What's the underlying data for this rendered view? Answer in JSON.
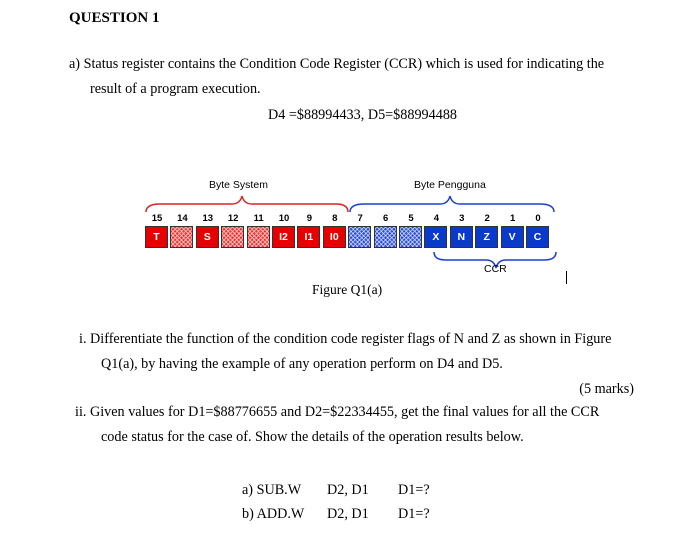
{
  "heading": "QUESTION 1",
  "part_a": {
    "line1": "a)  Status register contains the Condition Code Register (CCR) which is used for indicating the",
    "line2": "result of a program execution.",
    "registers": "D4 =$88994433, D5=$88994488"
  },
  "figure": {
    "byte_system": "Byte System",
    "byte_user": "Byte Pengguna",
    "bit_numbers": [
      "15",
      "14",
      "13",
      "12",
      "11",
      "10",
      "9",
      "8",
      "7",
      "6",
      "5",
      "4",
      "3",
      "2",
      "1",
      "0"
    ],
    "cells": [
      {
        "label": "T",
        "style": "red"
      },
      {
        "label": "",
        "style": "redhatch"
      },
      {
        "label": "S",
        "style": "red"
      },
      {
        "label": "",
        "style": "redhatch"
      },
      {
        "label": "",
        "style": "redhatch"
      },
      {
        "label": "I2",
        "style": "red"
      },
      {
        "label": "I1",
        "style": "red"
      },
      {
        "label": "I0",
        "style": "red"
      },
      {
        "label": "",
        "style": "bluehatch"
      },
      {
        "label": "",
        "style": "bluehatch"
      },
      {
        "label": "",
        "style": "bluehatch"
      },
      {
        "label": "X",
        "style": "blue"
      },
      {
        "label": "N",
        "style": "blue"
      },
      {
        "label": "Z",
        "style": "blue"
      },
      {
        "label": "V",
        "style": "blue"
      },
      {
        "label": "C",
        "style": "blue"
      }
    ],
    "ccr_label": "CCR",
    "caption": "Figure Q1(a)"
  },
  "q_i": {
    "line1": "i.  Differentiate the function of the condition code register flags of N and Z as shown in Figure",
    "line2": "Q1(a), by having the example of any operation perform on D4 and D5.",
    "marks": "(5 marks)"
  },
  "q_ii": {
    "line1": "ii.  Given values for D1=$88776655 and D2=$22334455, get the final values for all the CCR",
    "line2": "code status for the case of. Show the details of the operation results below."
  },
  "ops": [
    {
      "label": "a) SUB.W",
      "operands": "D2, D1",
      "result": "D1=?"
    },
    {
      "label": "b) ADD.W",
      "operands": "D2, D1",
      "result": "D1=?"
    }
  ]
}
